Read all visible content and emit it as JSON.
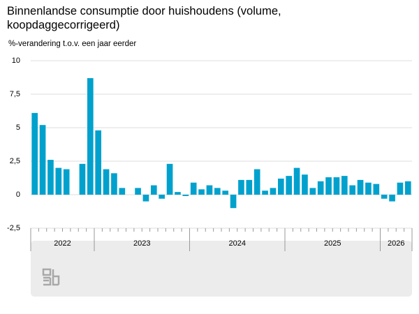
{
  "chart_data": {
    "type": "bar",
    "title": "Binnenlandse consumptie door huishoudens (volume, koopdaggecorrigeerd)",
    "subtitle": "%-verandering t.o.v. een jaar eerder",
    "color": "#00a1cd",
    "categories": [
      null,
      null,
      null,
      null,
      null,
      null,
      null,
      null,
      null,
      null,
      null,
      null,
      null,
      null,
      null,
      null,
      null,
      null,
      null,
      null,
      null,
      null,
      null,
      null,
      null,
      null,
      null,
      null,
      null,
      null,
      null,
      null,
      null,
      null,
      null,
      null,
      null,
      null,
      null,
      null,
      null,
      null,
      null,
      null,
      null,
      null,
      null,
      null
    ],
    "values": [
      6.1,
      5.2,
      2.6,
      2.0,
      1.9,
      0,
      2.3,
      8.7,
      4.8,
      1.9,
      1.6,
      0.5,
      0,
      0.5,
      -0.5,
      0.7,
      -0.3,
      2.3,
      0.2,
      -0.1,
      0.9,
      0.4,
      0.7,
      0.5,
      0.3,
      -1.0,
      1.1,
      1.1,
      1.9,
      0.3,
      0.5,
      1.2,
      1.4,
      2.0,
      1.5,
      0.5,
      1.0,
      1.3,
      1.3,
      1.4,
      0.7,
      1.1,
      0.9,
      0.8,
      -0.3,
      -0.5,
      0.9,
      1.0
    ],
    "x_groups": [
      {
        "label": "2022",
        "count": 8
      },
      {
        "label": "2023",
        "count": 12
      },
      {
        "label": "2024",
        "count": 12
      },
      {
        "label": "2025",
        "count": 12
      },
      {
        "label": "2026",
        "count": 4
      }
    ],
    "ylim": [
      -2.5,
      10
    ],
    "yticks": [
      {
        "value": -2.5,
        "label": "-2,5"
      },
      0,
      {
        "value": 2.5,
        "label": "2,5"
      },
      5,
      {
        "value": 7.5,
        "label": "7,5"
      },
      10
    ],
    "grid": true
  }
}
